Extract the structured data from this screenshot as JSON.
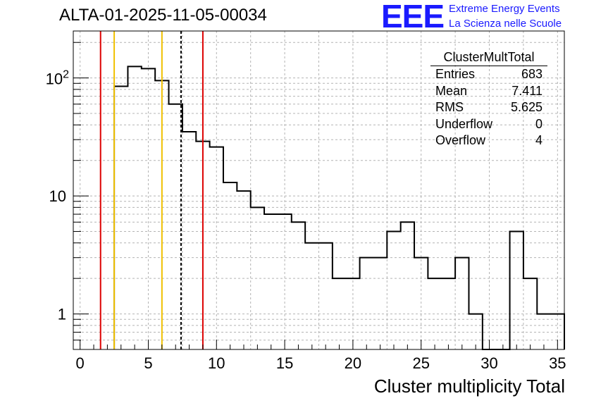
{
  "title": "ALTA-01-2025-11-05-00034",
  "logo": {
    "text": "EEE",
    "line1": "Extreme Energy Events",
    "line2": "La Scienza nelle Scuole",
    "color": "#1a1aff"
  },
  "stats": {
    "name": "ClusterMultTotal",
    "rows": [
      {
        "label": "Entries",
        "value": "683"
      },
      {
        "label": "Mean",
        "value": "7.411"
      },
      {
        "label": "RMS",
        "value": "5.625"
      },
      {
        "label": "Underflow",
        "value": "0"
      },
      {
        "label": "Overflow",
        "value": "4"
      }
    ]
  },
  "chart_data": {
    "type": "histogram",
    "title": "ALTA-01-2025-11-05-00034",
    "xlabel": "Cluster multiplicity Total",
    "ylabel": "",
    "xlim": [
      -0.5,
      35.5
    ],
    "ylim": [
      0.5,
      250
    ],
    "yscale": "log",
    "grid": true,
    "x_ticks": [
      "0",
      "5",
      "10",
      "15",
      "20",
      "25",
      "30",
      "35"
    ],
    "y_ticks": [
      "1",
      "10",
      "10^2"
    ],
    "bin_width": 1,
    "bins": [
      {
        "x": 3,
        "count": 85
      },
      {
        "x": 4,
        "count": 125
      },
      {
        "x": 5,
        "count": 120
      },
      {
        "x": 6,
        "count": 95
      },
      {
        "x": 7,
        "count": 60
      },
      {
        "x": 8,
        "count": 35
      },
      {
        "x": 9,
        "count": 29
      },
      {
        "x": 10,
        "count": 26
      },
      {
        "x": 11,
        "count": 13
      },
      {
        "x": 12,
        "count": 11
      },
      {
        "x": 13,
        "count": 8
      },
      {
        "x": 14,
        "count": 7
      },
      {
        "x": 15,
        "count": 7
      },
      {
        "x": 16,
        "count": 6
      },
      {
        "x": 17,
        "count": 4
      },
      {
        "x": 18,
        "count": 4
      },
      {
        "x": 19,
        "count": 2
      },
      {
        "x": 20,
        "count": 2
      },
      {
        "x": 21,
        "count": 3
      },
      {
        "x": 22,
        "count": 3
      },
      {
        "x": 23,
        "count": 5
      },
      {
        "x": 24,
        "count": 6
      },
      {
        "x": 25,
        "count": 3
      },
      {
        "x": 26,
        "count": 2
      },
      {
        "x": 27,
        "count": 2
      },
      {
        "x": 28,
        "count": 3
      },
      {
        "x": 29,
        "count": 1
      },
      {
        "x": 30,
        "count": 0
      },
      {
        "x": 31,
        "count": 0
      },
      {
        "x": 32,
        "count": 5
      },
      {
        "x": 33,
        "count": 2
      },
      {
        "x": 34,
        "count": 1
      },
      {
        "x": 35,
        "count": 1
      }
    ],
    "reference_lines": [
      {
        "x": 1.5,
        "color": "#dd0000",
        "style": "solid"
      },
      {
        "x": 2.5,
        "color": "#f0c000",
        "style": "solid"
      },
      {
        "x": 6,
        "color": "#f0c000",
        "style": "solid"
      },
      {
        "x": 7.4,
        "color": "#000000",
        "style": "dashed"
      },
      {
        "x": 9,
        "color": "#dd0000",
        "style": "solid"
      }
    ]
  }
}
